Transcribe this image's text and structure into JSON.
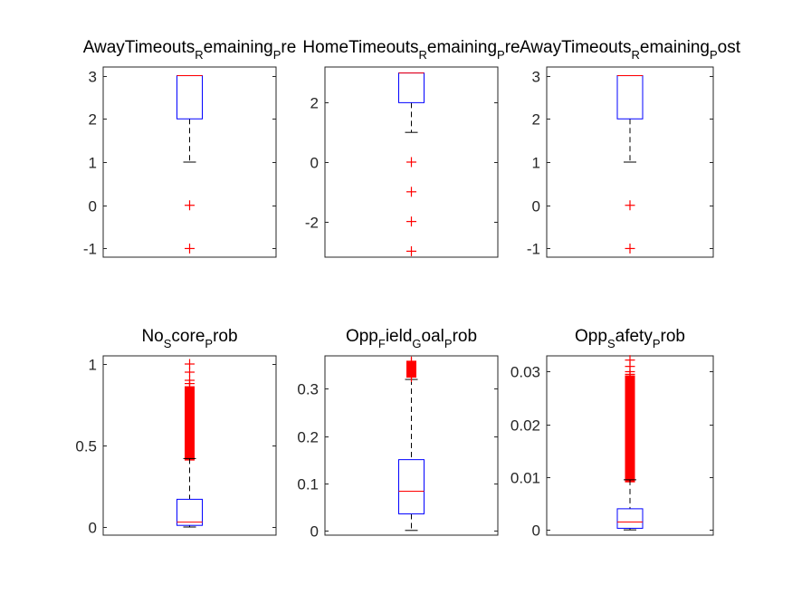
{
  "figure": {
    "background": "#ffffff",
    "box_color": "#0000ff",
    "median_color": "#ff0000",
    "outlier_color": "#ff0000",
    "whisker_color": "#000000"
  },
  "chart_data": [
    {
      "type": "boxplot",
      "title": [
        {
          "text": "AwayTimeouts"
        },
        {
          "text": "R",
          "sub": true
        },
        {
          "text": "emaining"
        },
        {
          "text": "P",
          "sub": true
        },
        {
          "text": "re"
        }
      ],
      "ylim": [
        -1.2,
        3.2
      ],
      "yticks": [
        3,
        2,
        1,
        0,
        -1
      ],
      "ytick_labels": [
        "3",
        "2",
        "1",
        "0",
        "-1"
      ],
      "q1": 2,
      "median": 3,
      "q3": 3,
      "whisker_low": 1,
      "whisker_high": 3,
      "outliers": [
        0,
        -1
      ],
      "outlier_bands": []
    },
    {
      "type": "boxplot",
      "title": [
        {
          "text": "HomeTimeouts"
        },
        {
          "text": "R",
          "sub": true
        },
        {
          "text": "emaining"
        },
        {
          "text": "P",
          "sub": true
        },
        {
          "text": "re"
        }
      ],
      "ylim": [
        -3.2,
        3.2
      ],
      "yticks": [
        2,
        0,
        -2
      ],
      "ytick_labels": [
        "2",
        "0",
        "-2"
      ],
      "q1": 2,
      "median": 3,
      "q3": 3,
      "whisker_low": 1,
      "whisker_high": 3,
      "outliers": [
        0,
        -1,
        -2,
        -3
      ],
      "outlier_bands": []
    },
    {
      "type": "boxplot",
      "title": [
        {
          "text": "AwayTimeouts"
        },
        {
          "text": "R",
          "sub": true
        },
        {
          "text": "emaining"
        },
        {
          "text": "P",
          "sub": true
        },
        {
          "text": "ost"
        }
      ],
      "ylim": [
        -1.2,
        3.2
      ],
      "yticks": [
        3,
        2,
        1,
        0,
        -1
      ],
      "ytick_labels": [
        "3",
        "2",
        "1",
        "0",
        "-1"
      ],
      "q1": 2,
      "median": 3,
      "q3": 3,
      "whisker_low": 1,
      "whisker_high": 3,
      "outliers": [
        0,
        -1
      ],
      "outlier_bands": []
    },
    {
      "type": "boxplot",
      "title": [
        {
          "text": "No"
        },
        {
          "text": "S",
          "sub": true
        },
        {
          "text": "core"
        },
        {
          "text": "P",
          "sub": true
        },
        {
          "text": "rob"
        }
      ],
      "ylim": [
        -0.05,
        1.05
      ],
      "yticks": [
        1,
        0.5,
        0
      ],
      "ytick_labels": [
        "1",
        "0.5",
        "0"
      ],
      "q1": 0.01,
      "median": 0.03,
      "q3": 0.17,
      "whisker_low": 0,
      "whisker_high": 0.42,
      "outliers": [
        1.0,
        0.95,
        0.9,
        0.88,
        0.86
      ],
      "outlier_bands": [
        [
          0.43,
          0.84
        ]
      ]
    },
    {
      "type": "boxplot",
      "title": [
        {
          "text": "Opp"
        },
        {
          "text": "F",
          "sub": true
        },
        {
          "text": "ield"
        },
        {
          "text": "G",
          "sub": true
        },
        {
          "text": "oal"
        },
        {
          "text": "P",
          "sub": true
        },
        {
          "text": "rob"
        }
      ],
      "ylim": [
        -0.01,
        0.37
      ],
      "yticks": [
        0.3,
        0.2,
        0.1,
        0
      ],
      "ytick_labels": [
        "0.3",
        "0.2",
        "0.1",
        "0"
      ],
      "q1": 0.035,
      "median": 0.083,
      "q3": 0.15,
      "whisker_low": 0,
      "whisker_high": 0.32,
      "outliers": [
        0.358,
        0.355,
        0.33,
        0.325
      ],
      "outlier_bands": [
        [
          0.332,
          0.352
        ]
      ]
    },
    {
      "type": "boxplot",
      "title": [
        {
          "text": "Opp"
        },
        {
          "text": "S",
          "sub": true
        },
        {
          "text": "afety"
        },
        {
          "text": "P",
          "sub": true
        },
        {
          "text": "rob"
        }
      ],
      "ylim": [
        -0.001,
        0.033
      ],
      "yticks": [
        0.03,
        0.02,
        0.01,
        0
      ],
      "ytick_labels": [
        "0.03",
        "0.02",
        "0.01",
        "0"
      ],
      "q1": 0.0003,
      "median": 0.0015,
      "q3": 0.004,
      "whisker_low": 0,
      "whisker_high": 0.0095,
      "outliers": [
        0.0322,
        0.031,
        0.03,
        0.0295,
        0.0292
      ],
      "outlier_bands": [
        [
          0.0097,
          0.0285
        ]
      ]
    }
  ]
}
